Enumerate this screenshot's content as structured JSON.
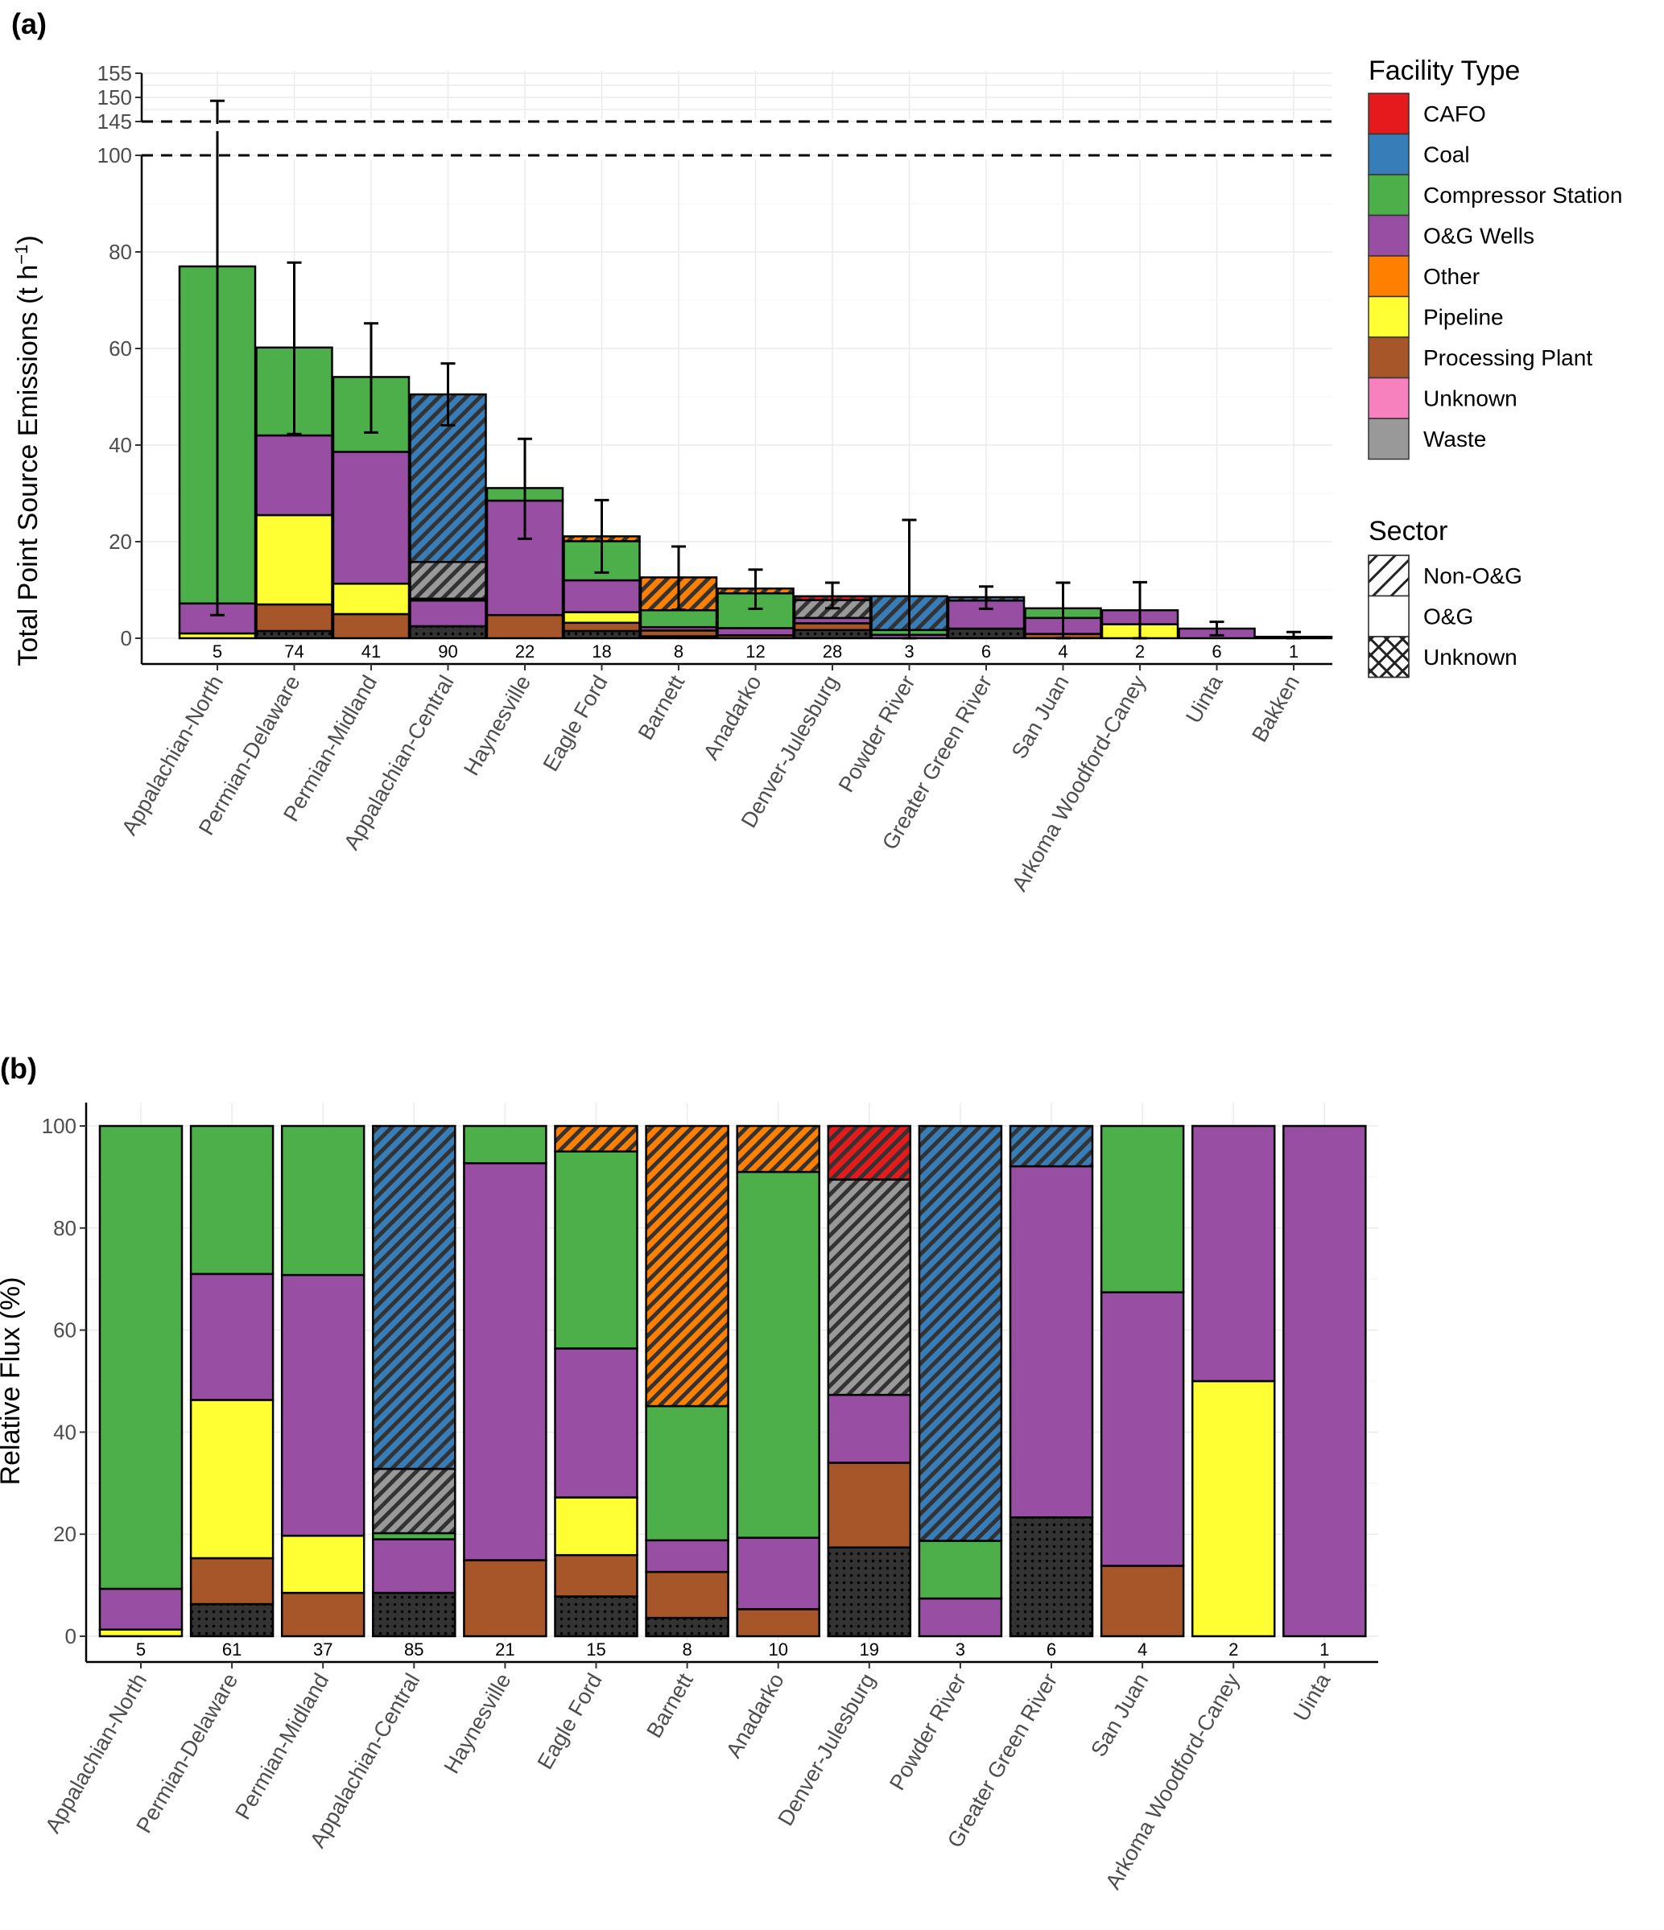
{
  "facility_colors": {
    "CAFO": "#e41a1c",
    "Coal": "#377eb8",
    "Compressor Station": "#4daf4a",
    "O&G Wells": "#984ea3",
    "Other": "#ff7f00",
    "Pipeline": "#ffff33",
    "Processing Plant": "#a65628",
    "Unknown": "#f781bf",
    "Waste": "#999999"
  },
  "legend": {
    "facility_title": "Facility Type",
    "facility_items": [
      "CAFO",
      "Coal",
      "Compressor Station",
      "O&G Wells",
      "Other",
      "Pipeline",
      "Processing Plant",
      "Unknown",
      "Waste"
    ],
    "sector_title": "Sector",
    "sector_items": [
      {
        "label": "Non-O&G",
        "pattern": "stripe"
      },
      {
        "label": "O&G",
        "pattern": "none"
      },
      {
        "label": "Unknown",
        "pattern": "crosshatch"
      }
    ]
  },
  "chart_data": [
    {
      "panel": "(a)",
      "type": "bar",
      "stacked": true,
      "ylabel": "Total Point Source Emissions (t h⁻¹)",
      "ylabel_main": "Total Point Source Emissions (t h",
      "ylabel_sup": "−1",
      "ylabel_close": ")",
      "xlabel": "",
      "ylim_lower": [
        0,
        100
      ],
      "ylim_upper": [
        145,
        155
      ],
      "axis_break": "between 100 and 145 (dashed lines)",
      "yticks_lower": [
        0,
        20,
        40,
        60,
        80,
        100
      ],
      "yticks_upper": [
        145,
        150,
        155
      ],
      "grid": true,
      "legend_position": "right",
      "categories": [
        "Appalachian-North",
        "Permian-Delaware",
        "Permian-Midland",
        "Appalachian-Central",
        "Haynesville",
        "Eagle Ford",
        "Barnett",
        "Anadarko",
        "Denver-Julesburg",
        "Powder River",
        "Greater Green River",
        "San Juan",
        "Arkoma Woodford-Caney",
        "Uinta",
        "Bakken"
      ],
      "counts": [
        "5",
        "74",
        "41",
        "90",
        "22",
        "18",
        "8",
        "12",
        "28",
        "3",
        "6",
        "4",
        "2",
        "6",
        "1"
      ],
      "bars": [
        {
          "segments": [
            [
              "Pipeline",
              "O&G",
              1.0
            ],
            [
              "O&G Wells",
              "O&G",
              6.2
            ],
            [
              "Compressor Station",
              "O&G",
              69.8
            ]
          ],
          "err": [
            4.8,
            149.3
          ]
        },
        {
          "segments": [
            [
              "Unknown",
              "Unknown",
              1.5
            ],
            [
              "Processing Plant",
              "O&G",
              5.5
            ],
            [
              "Pipeline",
              "O&G",
              18.5
            ],
            [
              "O&G Wells",
              "O&G",
              16.5
            ],
            [
              "Compressor Station",
              "O&G",
              18.2
            ]
          ],
          "err": [
            42.3,
            77.8
          ]
        },
        {
          "segments": [
            [
              "Processing Plant",
              "O&G",
              5.0
            ],
            [
              "Pipeline",
              "O&G",
              6.3
            ],
            [
              "O&G Wells",
              "O&G",
              27.3
            ],
            [
              "Compressor Station",
              "O&G",
              15.5
            ]
          ],
          "err": [
            42.6,
            65.2
          ]
        },
        {
          "segments": [
            [
              "Unknown",
              "Unknown",
              2.5
            ],
            [
              "O&G Wells",
              "O&G",
              5.3
            ],
            [
              "Compressor Station",
              "O&G",
              0.4
            ],
            [
              "Waste",
              "Non-O&G",
              7.6
            ],
            [
              "Coal",
              "Non-O&G",
              34.7
            ]
          ],
          "err": [
            44.1,
            56.9
          ]
        },
        {
          "segments": [
            [
              "Processing Plant",
              "O&G",
              4.8
            ],
            [
              "O&G Wells",
              "O&G",
              23.7
            ],
            [
              "Compressor Station",
              "O&G",
              2.6
            ]
          ],
          "err": [
            20.6,
            41.3
          ]
        },
        {
          "segments": [
            [
              "Unknown",
              "Unknown",
              1.5
            ],
            [
              "Processing Plant",
              "O&G",
              1.7
            ],
            [
              "Pipeline",
              "O&G",
              2.2
            ],
            [
              "O&G Wells",
              "O&G",
              6.6
            ],
            [
              "Compressor Station",
              "O&G",
              8.1
            ],
            [
              "Other",
              "Non-O&G",
              1.0
            ]
          ],
          "err": [
            13.6,
            28.6
          ]
        },
        {
          "segments": [
            [
              "Unknown",
              "Unknown",
              0.4
            ],
            [
              "Processing Plant",
              "O&G",
              1.2
            ],
            [
              "O&G Wells",
              "O&G",
              0.7
            ],
            [
              "Compressor Station",
              "O&G",
              3.5
            ],
            [
              "Other",
              "Non-O&G",
              6.8
            ]
          ],
          "err": [
            5.9,
            19.0
          ]
        },
        {
          "segments": [
            [
              "Processing Plant",
              "O&G",
              0.6
            ],
            [
              "O&G Wells",
              "O&G",
              1.5
            ],
            [
              "Compressor Station",
              "O&G",
              7.2
            ],
            [
              "Other",
              "Non-O&G",
              1.0
            ]
          ],
          "err": [
            6.1,
            14.2
          ]
        },
        {
          "segments": [
            [
              "Unknown",
              "Unknown",
              1.7
            ],
            [
              "Processing Plant",
              "O&G",
              1.4
            ],
            [
              "O&G Wells",
              "O&G",
              1.1
            ],
            [
              "Waste",
              "Non-O&G",
              3.7
            ],
            [
              "CAFO",
              "Non-O&G",
              0.8
            ]
          ],
          "err": [
            6.2,
            11.5
          ]
        },
        {
          "segments": [
            [
              "O&G Wells",
              "O&G",
              0.7
            ],
            [
              "Compressor Station",
              "O&G",
              1.0
            ],
            [
              "Coal",
              "Non-O&G",
              7.0
            ]
          ],
          "err": [
            0.0,
            24.5
          ]
        },
        {
          "segments": [
            [
              "Unknown",
              "Unknown",
              2.0
            ],
            [
              "O&G Wells",
              "O&G",
              5.8
            ],
            [
              "Coal",
              "Non-O&G",
              0.7
            ]
          ],
          "err": [
            6.1,
            10.7
          ]
        },
        {
          "segments": [
            [
              "Processing Plant",
              "O&G",
              0.9
            ],
            [
              "O&G Wells",
              "O&G",
              3.3
            ],
            [
              "Compressor Station",
              "O&G",
              2.0
            ]
          ],
          "err": [
            0.0,
            11.5
          ]
        },
        {
          "segments": [
            [
              "Pipeline",
              "O&G",
              2.9
            ],
            [
              "O&G Wells",
              "O&G",
              2.9
            ]
          ],
          "err": [
            0.0,
            11.6
          ]
        },
        {
          "segments": [
            [
              "O&G Wells",
              "O&G",
              2.0
            ]
          ],
          "err": [
            0.6,
            3.4
          ]
        },
        {
          "segments": [
            [
              "O&G Wells",
              "O&G",
              0.3
            ]
          ],
          "err": [
            0.0,
            1.3
          ]
        }
      ]
    },
    {
      "panel": "(b)",
      "type": "bar",
      "stacked": true,
      "ylabel": "Relative Flux (%)",
      "xlabel": "",
      "ylim": [
        0,
        100
      ],
      "yticks": [
        0,
        20,
        40,
        60,
        80,
        100
      ],
      "grid": true,
      "categories": [
        "Appalachian-North",
        "Permian-Delaware",
        "Permian-Midland",
        "Appalachian-Central",
        "Haynesville",
        "Eagle Ford",
        "Barnett",
        "Anadarko",
        "Denver-Julesburg",
        "Powder River",
        "Greater Green River",
        "San Juan",
        "Arkoma Woodford-Caney",
        "Uinta"
      ],
      "counts": [
        "5",
        "61",
        "37",
        "85",
        "21",
        "15",
        "8",
        "10",
        "19",
        "3",
        "6",
        "4",
        "2",
        "1"
      ],
      "bars": [
        {
          "segments": [
            [
              "Pipeline",
              "O&G",
              1.3
            ],
            [
              "O&G Wells",
              "O&G",
              8.0
            ],
            [
              "Compressor Station",
              "O&G",
              90.7
            ]
          ]
        },
        {
          "segments": [
            [
              "Unknown",
              "Unknown",
              6.3
            ],
            [
              "Processing Plant",
              "O&G",
              9.0
            ],
            [
              "Pipeline",
              "O&G",
              31.0
            ],
            [
              "O&G Wells",
              "O&G",
              24.7
            ],
            [
              "Compressor Station",
              "O&G",
              29.0
            ]
          ]
        },
        {
          "segments": [
            [
              "Processing Plant",
              "O&G",
              8.5
            ],
            [
              "Pipeline",
              "O&G",
              11.2
            ],
            [
              "O&G Wells",
              "O&G",
              51.1
            ],
            [
              "Compressor Station",
              "O&G",
              29.2
            ]
          ]
        },
        {
          "segments": [
            [
              "Unknown",
              "Unknown",
              8.5
            ],
            [
              "O&G Wells",
              "O&G",
              10.5
            ],
            [
              "Compressor Station",
              "O&G",
              1.2
            ],
            [
              "Waste",
              "Non-O&G",
              12.6
            ],
            [
              "Coal",
              "Non-O&G",
              67.2
            ]
          ]
        },
        {
          "segments": [
            [
              "Processing Plant",
              "O&G",
              14.9
            ],
            [
              "O&G Wells",
              "O&G",
              77.8
            ],
            [
              "Compressor Station",
              "O&G",
              7.3
            ]
          ]
        },
        {
          "segments": [
            [
              "Unknown",
              "Unknown",
              7.8
            ],
            [
              "Processing Plant",
              "O&G",
              8.1
            ],
            [
              "Pipeline",
              "O&G",
              11.3
            ],
            [
              "O&G Wells",
              "O&G",
              29.2
            ],
            [
              "Compressor Station",
              "O&G",
              38.6
            ],
            [
              "Other",
              "Non-O&G",
              5.0
            ]
          ]
        },
        {
          "segments": [
            [
              "Unknown",
              "Unknown",
              3.6
            ],
            [
              "Processing Plant",
              "O&G",
              9.0
            ],
            [
              "O&G Wells",
              "O&G",
              6.2
            ],
            [
              "Compressor Station",
              "O&G",
              26.3
            ],
            [
              "Other",
              "Non-O&G",
              54.9
            ]
          ]
        },
        {
          "segments": [
            [
              "Processing Plant",
              "O&G",
              5.3
            ],
            [
              "O&G Wells",
              "O&G",
              14.0
            ],
            [
              "Compressor Station",
              "O&G",
              71.7
            ],
            [
              "Other",
              "Non-O&G",
              9.0
            ]
          ]
        },
        {
          "segments": [
            [
              "Unknown",
              "Unknown",
              17.4
            ],
            [
              "Processing Plant",
              "O&G",
              16.6
            ],
            [
              "O&G Wells",
              "O&G",
              13.3
            ],
            [
              "Waste",
              "Non-O&G",
              42.2
            ],
            [
              "CAFO",
              "Non-O&G",
              10.5
            ]
          ]
        },
        {
          "segments": [
            [
              "O&G Wells",
              "O&G",
              7.4
            ],
            [
              "Compressor Station",
              "O&G",
              11.3
            ],
            [
              "Coal",
              "Non-O&G",
              81.3
            ]
          ]
        },
        {
          "segments": [
            [
              "Unknown",
              "Unknown",
              23.3
            ],
            [
              "O&G Wells",
              "O&G",
              68.8
            ],
            [
              "Coal",
              "Non-O&G",
              7.9
            ]
          ]
        },
        {
          "segments": [
            [
              "Processing Plant",
              "O&G",
              13.8
            ],
            [
              "O&G Wells",
              "O&G",
              53.6
            ],
            [
              "Compressor Station",
              "O&G",
              32.6
            ]
          ]
        },
        {
          "segments": [
            [
              "Pipeline",
              "O&G",
              50.0
            ],
            [
              "O&G Wells",
              "O&G",
              50.0
            ]
          ]
        },
        {
          "segments": [
            [
              "O&G Wells",
              "O&G",
              100.0
            ]
          ]
        }
      ]
    }
  ]
}
